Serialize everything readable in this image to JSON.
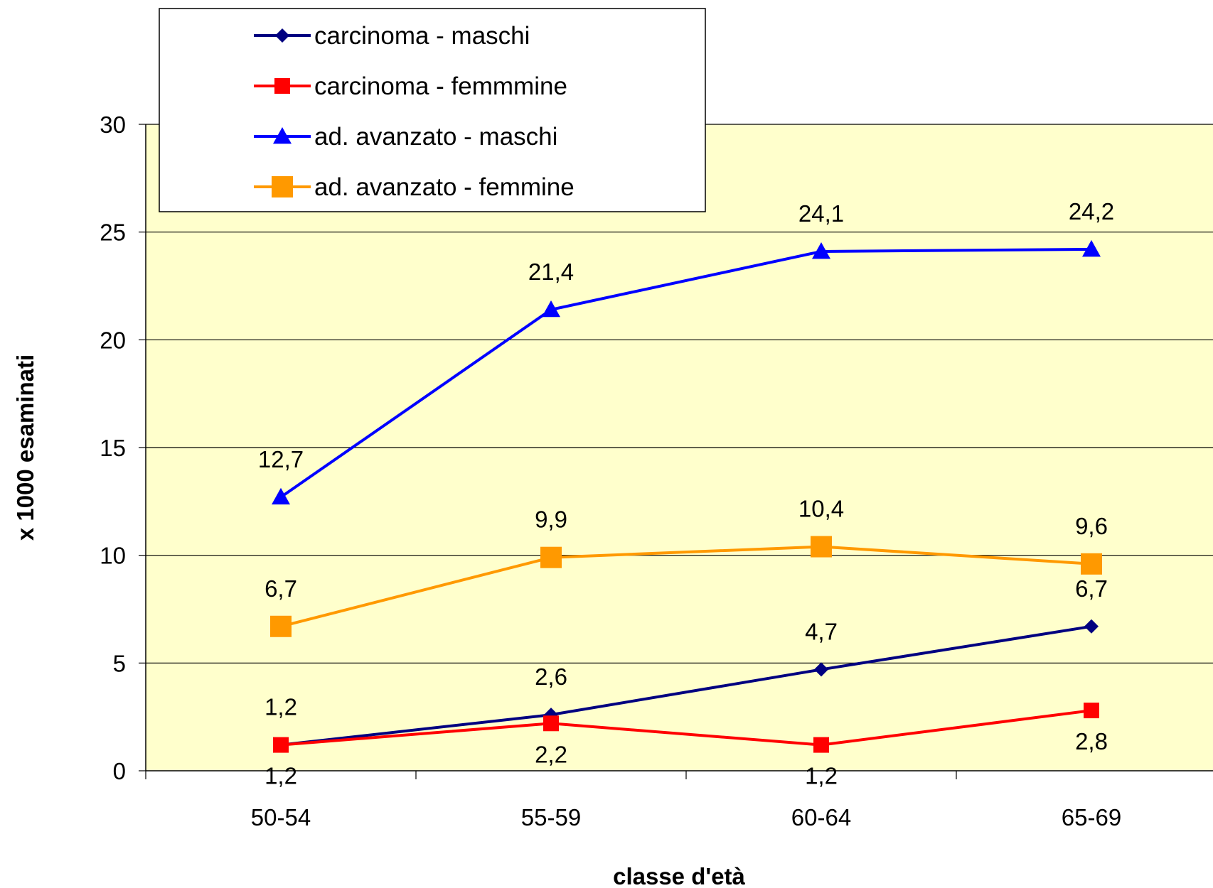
{
  "chart_data": {
    "type": "line",
    "categories": [
      "50-54",
      "55-59",
      "60-64",
      "65-69"
    ],
    "series": [
      {
        "name": "carcinoma - maschi",
        "values": [
          1.2,
          2.6,
          4.7,
          6.7
        ],
        "color": "#000080",
        "marker": "diamond",
        "labels": [
          "1,2",
          "2,6",
          "4,7",
          "6,7"
        ],
        "label_position": "above"
      },
      {
        "name": "carcinoma - femmmine",
        "values": [
          1.2,
          2.2,
          1.2,
          2.8
        ],
        "color": "#FF0000",
        "marker": "square",
        "labels": [
          "1,2",
          "2,2",
          "1,2",
          "2,8"
        ],
        "label_position": "below"
      },
      {
        "name": "ad. avanzato - maschi",
        "values": [
          12.7,
          21.4,
          24.1,
          24.2
        ],
        "color": "#0000FF",
        "marker": "triangle",
        "labels": [
          "12,7",
          "21,4",
          "24,1",
          "24,2"
        ],
        "label_position": "above"
      },
      {
        "name": "ad. avanzato - femmine",
        "values": [
          6.7,
          9.9,
          10.4,
          9.6
        ],
        "color": "#FF9900",
        "marker": "square",
        "labels": [
          "6,7",
          "9,9",
          "10,4",
          "9,6"
        ],
        "label_position": "above"
      }
    ],
    "xlabel": "classe d'età",
    "ylabel": "x 1000 esaminati",
    "ylim": [
      0,
      30
    ],
    "yticks": [
      0,
      5,
      10,
      15,
      20,
      25,
      30
    ],
    "grid": "horizontal",
    "legend_position": "top-left",
    "plot_background": "#FFFFCC"
  }
}
